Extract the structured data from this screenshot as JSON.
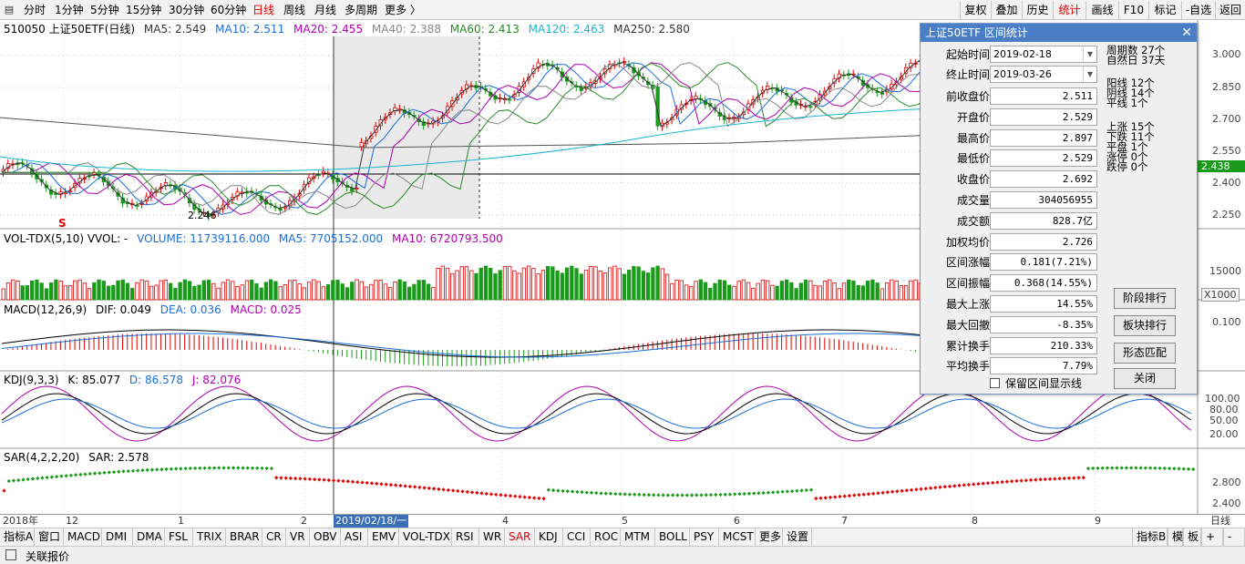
{
  "toolbar": {
    "periods": [
      "分时",
      "1分钟",
      "5分钟",
      "15分钟",
      "30分钟",
      "60分钟",
      "日线",
      "周线",
      "月线",
      "多周期",
      "更多 〉"
    ],
    "active_period": "日线",
    "right_buttons": [
      "复权",
      "叠加",
      "历史",
      "统计",
      "画线",
      "F10",
      "标记",
      "-自选",
      "返回"
    ],
    "active_right": "统计"
  },
  "main_info": {
    "symbol": "510050 上证50ETF(日线)",
    "ma5": "MA5: 2.549",
    "ma10": "MA10: 2.511",
    "ma20": "MA20: 2.455",
    "ma40": "MA40: 2.388",
    "ma60": "MA60: 2.413",
    "ma120": "MA120: 2.463",
    "ma250": "MA250: 2.580"
  },
  "price_axis": [
    "3.000",
    "2.850",
    "2.700",
    "2.550",
    "2.400",
    "2.250"
  ],
  "price_tag": "2.438",
  "low_marker": "2.246",
  "s_marker": "S",
  "vol_info": {
    "name": "VOL-TDX(5,10) VVOL: -",
    "volume": "VOLUME: 11739116.000",
    "ma5": "MA5: 7705152.000",
    "ma10": "MA10: 6720793.500"
  },
  "vol_axis": [
    "15000"
  ],
  "vol_unit": "X1000",
  "macd_info": {
    "name": "MACD(12,26,9)",
    "dif": "DIF: 0.049",
    "dea": "DEA: 0.036",
    "macd": "MACD: 0.025"
  },
  "macd_axis": [
    "0.100"
  ],
  "kdj_info": {
    "name": "KDJ(9,3,3)",
    "k": "K: 85.077",
    "d": "D: 86.578",
    "j": "J: 82.076"
  },
  "kdj_axis": [
    "100.00",
    "80.00",
    "50.00",
    "20.00"
  ],
  "sar_info": {
    "name": "SAR(4,2,2,20)",
    "sar": "SAR: 2.578"
  },
  "sar_axis": [
    "2.800",
    "2.400"
  ],
  "x_axis": {
    "labels": [
      "2018年",
      "12",
      "1",
      "2",
      "2019/02/18/一",
      "4",
      "5",
      "6",
      "7",
      "8",
      "9"
    ],
    "right": "日线"
  },
  "dialog": {
    "title": "上证50ETF 区间统计",
    "start_label": "起始时间",
    "start_value": "2019-02-18",
    "end_label": "终止时间",
    "end_value": "2019-03-26",
    "rows": [
      {
        "label": "前收盘价",
        "value": "2.511"
      },
      {
        "label": "开盘价",
        "value": "2.529"
      },
      {
        "label": "最高价",
        "value": "2.897"
      },
      {
        "label": "最低价",
        "value": "2.529"
      },
      {
        "label": "收盘价",
        "value": "2.692"
      },
      {
        "label": "成交量",
        "value": "304056955"
      },
      {
        "label": "成交额",
        "value": "828.7亿"
      },
      {
        "label": "加权均价",
        "value": "2.726"
      },
      {
        "label": "区间涨幅",
        "value": "0.181(7.21%)"
      },
      {
        "label": "区间振幅",
        "value": "0.368(14.55%)"
      },
      {
        "label": "最大上涨",
        "value": "14.55%"
      },
      {
        "label": "最大回撤",
        "value": "-8.35%"
      },
      {
        "label": "累计换手",
        "value": "210.33%"
      },
      {
        "label": "平均换手",
        "value": "7.79%"
      }
    ],
    "stats_top": [
      "周期数 27个",
      "自然日 37天"
    ],
    "stats_mid": [
      "阳线 12个",
      "阴线 14个",
      "平线 1个"
    ],
    "stats_bot": [
      "上涨 15个",
      "下跌 11个",
      "平盘 1个",
      "涨停 0个",
      "跌停 0个"
    ],
    "buttons": [
      "阶段排行",
      "板块排行",
      "形态匹配",
      "关闭"
    ],
    "checkbox_label": "保留区间显示线"
  },
  "bottom_tabs": [
    "指标A",
    "窗口",
    "MACD",
    "DMI",
    "DMA",
    "FSL",
    "TRIX",
    "BRAR",
    "CR",
    "VR",
    "OBV",
    "ASI",
    "EMV",
    "VOL-TDX",
    "RSI",
    "WR",
    "SAR",
    "KDJ",
    "CCI",
    "ROC",
    "MTM",
    "BOLL",
    "PSY",
    "MCST",
    "更多",
    "设置"
  ],
  "active_tab": "SAR",
  "bottom_right_tabs": [
    "指标B",
    "模",
    "板",
    "+",
    "-"
  ],
  "status": {
    "label": "关联报价"
  },
  "colors": {
    "up": "#e00000",
    "down": "#1a9a1a",
    "ma5": "#333333",
    "ma10": "#1a6ed8",
    "ma20": "#b000b0",
    "ma40": "#888888",
    "ma60": "#2a8a2a",
    "ma120": "#19b5d0",
    "ma250": "#555555",
    "accent": "#e00000",
    "dialog_title": "#4a7fc7"
  }
}
